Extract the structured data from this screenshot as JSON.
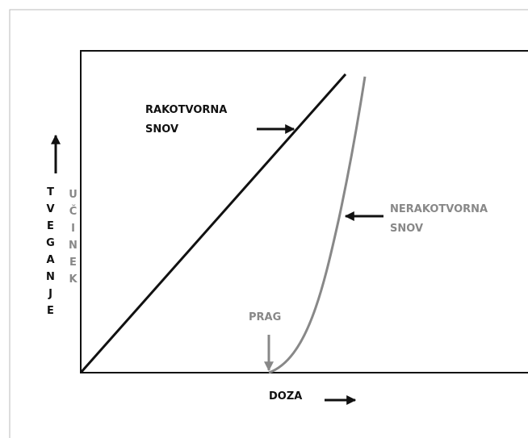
{
  "labels": {
    "carcinogen": [
      "RAKOTVORNA",
      "SNOV"
    ],
    "non_carcinogen": [
      "NERAKOTVORNA",
      "SNOV"
    ],
    "threshold": "PRAG",
    "x_axis": "DOZA",
    "y_axis_risk": "TVEGANJE",
    "y_axis_effect": "UČINEK"
  }
}
